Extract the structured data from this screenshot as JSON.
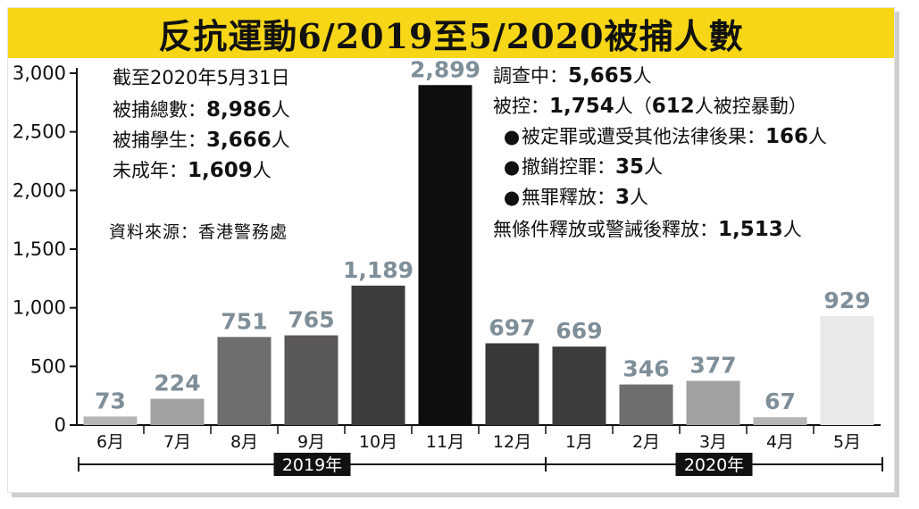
{
  "title": "反抗運動6/2019至5/2020被捕人數",
  "source": "資料來源：香港警務處",
  "left_notes": [
    {
      "label": "截至2020年5月31日",
      "value": "",
      "unit": ""
    },
    {
      "label": "被捕總數：",
      "value": "8,986",
      "unit": "人"
    },
    {
      "label": "被捕學生：",
      "value": "3,666",
      "unit": "人"
    },
    {
      "label": "未成年：",
      "value": "1,609",
      "unit": "人"
    }
  ],
  "right_notes": [
    {
      "bullet": "",
      "label": "調查中：",
      "value": "5,665",
      "unit": "人",
      "extra": ""
    },
    {
      "bullet": "",
      "label": "被控：",
      "value": "1,754",
      "unit": "人（",
      "extra_value": "612",
      "extra": "人被控暴動）"
    },
    {
      "bullet": "●",
      "label": "被定罪或遭受其他法律後果：",
      "value": "166",
      "unit": "人",
      "extra": ""
    },
    {
      "bullet": "●",
      "label": "撤銷控罪：",
      "value": "35",
      "unit": "人",
      "extra": ""
    },
    {
      "bullet": "●",
      "label": "無罪釋放：",
      "value": "3",
      "unit": "人",
      "extra": ""
    },
    {
      "bullet": "",
      "label": "無條件釋放或警誡後釋放：",
      "value": "1,513",
      "unit": "人",
      "extra": ""
    }
  ],
  "colors": {
    "title_bg": "#f6d617",
    "value_label": "#7f8f9a",
    "bars": [
      "#b5b5b5",
      "#a1a1a1",
      "#6e6e6e",
      "#5b5858",
      "#3f3c3c",
      "#0e0e0e",
      "#3a3838",
      "#3f3c3c",
      "#6e6e6e",
      "#a1a1a1",
      "#b5b5b5",
      "#e9e9e9"
    ]
  },
  "chart_data": {
    "type": "bar",
    "categories": [
      "6月",
      "7月",
      "8月",
      "9月",
      "10月",
      "11月",
      "12月",
      "1月",
      "2月",
      "3月",
      "4月",
      "5月"
    ],
    "values": [
      73,
      224,
      751,
      765,
      1189,
      2899,
      697,
      669,
      346,
      377,
      67,
      929
    ],
    "value_labels": [
      "73",
      "224",
      "751",
      "765",
      "1,189",
      "2,899",
      "697",
      "669",
      "346",
      "377",
      "67",
      "929"
    ],
    "yticks": [
      0,
      500,
      1000,
      1500,
      2000,
      2500,
      3000
    ],
    "ytick_labels": [
      "0",
      "500",
      "1,000",
      "1,500",
      "2,000",
      "2,500",
      "3,000"
    ],
    "ylim": [
      0,
      3000
    ],
    "periods": [
      {
        "label": "2019年",
        "from": 0,
        "to": 6
      },
      {
        "label": "2020年",
        "from": 7,
        "to": 11
      }
    ],
    "grid": false
  }
}
